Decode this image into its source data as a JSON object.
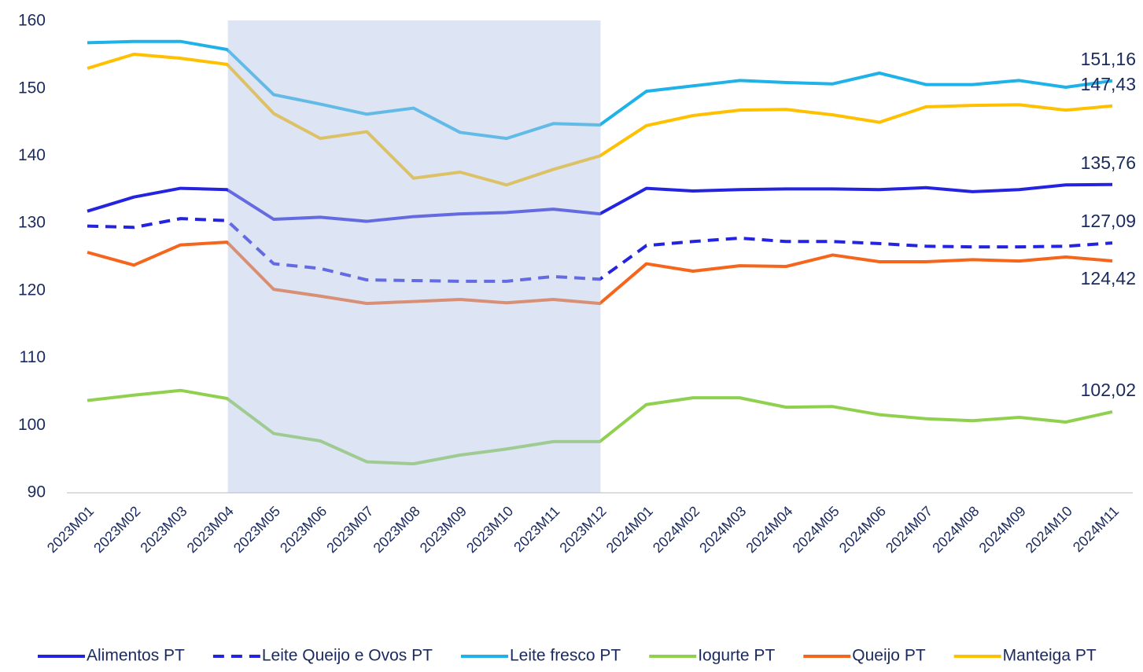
{
  "chart_data": {
    "type": "line",
    "categories": [
      "2023M01",
      "2023M02",
      "2023M03",
      "2023M04",
      "2023M05",
      "2023M06",
      "2023M07",
      "2023M08",
      "2023M09",
      "2023M10",
      "2023M11",
      "2023M12",
      "2024M01",
      "2024M02",
      "2024M03",
      "2024M04",
      "2024M05",
      "2024M06",
      "2024M07",
      "2024M08",
      "2024M09",
      "2024M10",
      "2024M11"
    ],
    "ylim": [
      90,
      160
    ],
    "yticks": [
      90,
      100,
      110,
      120,
      130,
      140,
      150,
      160
    ],
    "shaded_range": [
      3,
      11
    ],
    "series": [
      {
        "name": "Alimentos PT",
        "color": "#2424e0",
        "dash": false,
        "values": [
          131.8,
          133.9,
          135.2,
          135.0,
          130.6,
          130.9,
          130.3,
          131.0,
          131.4,
          131.6,
          132.1,
          131.4,
          135.2,
          134.8,
          135.0,
          135.1,
          135.1,
          135.0,
          135.3,
          134.7,
          135.0,
          135.7,
          135.76
        ],
        "value_labels": [
          null,
          null,
          null,
          null,
          null,
          null,
          null,
          null,
          null,
          null,
          null,
          null,
          null,
          null,
          null,
          null,
          null,
          null,
          null,
          null,
          null,
          null,
          "135,76"
        ]
      },
      {
        "name": "Leite Queijo e Ovos PT",
        "color": "#2424e0",
        "dash": true,
        "values": [
          129.6,
          129.4,
          130.7,
          130.4,
          124.0,
          123.3,
          121.6,
          121.5,
          121.4,
          121.4,
          122.1,
          121.7,
          126.7,
          127.3,
          127.8,
          127.3,
          127.3,
          127.0,
          126.6,
          126.5,
          126.5,
          126.6,
          127.09
        ],
        "value_labels": [
          null,
          null,
          null,
          null,
          null,
          null,
          null,
          null,
          null,
          null,
          null,
          null,
          null,
          null,
          null,
          null,
          null,
          null,
          null,
          null,
          null,
          null,
          "127,09"
        ]
      },
      {
        "name": "Leite fresco PT",
        "color": "#1fb2e8",
        "dash": false,
        "values": [
          156.8,
          157.0,
          157.0,
          155.8,
          149.1,
          147.7,
          146.2,
          147.1,
          143.5,
          142.6,
          144.8,
          144.6,
          149.6,
          150.4,
          151.2,
          150.9,
          150.7,
          152.3,
          150.6,
          150.6,
          151.2,
          150.2,
          151.16
        ],
        "value_labels": [
          null,
          null,
          null,
          null,
          null,
          null,
          null,
          null,
          null,
          null,
          null,
          null,
          null,
          null,
          null,
          null,
          null,
          null,
          null,
          null,
          null,
          null,
          "151,16"
        ]
      },
      {
        "name": "Iogurte PT",
        "color": "#8fd14f",
        "dash": false,
        "values": [
          103.7,
          104.5,
          105.2,
          104.0,
          98.8,
          97.7,
          94.6,
          94.3,
          95.6,
          96.5,
          97.6,
          97.6,
          103.1,
          104.1,
          104.1,
          102.7,
          102.8,
          101.6,
          101.0,
          100.7,
          101.2,
          100.5,
          102.02
        ],
        "value_labels": [
          null,
          null,
          null,
          null,
          null,
          null,
          null,
          null,
          null,
          null,
          null,
          null,
          null,
          null,
          null,
          null,
          null,
          null,
          null,
          null,
          null,
          null,
          "102,02"
        ]
      },
      {
        "name": "Queijo PT",
        "color": "#f5651c",
        "dash": false,
        "values": [
          125.7,
          123.8,
          126.8,
          127.2,
          120.2,
          119.2,
          118.1,
          118.4,
          118.7,
          118.2,
          118.7,
          118.1,
          124.0,
          122.9,
          123.7,
          123.6,
          125.3,
          124.3,
          124.3,
          124.6,
          124.4,
          125.0,
          124.42
        ],
        "value_labels": [
          null,
          null,
          null,
          null,
          null,
          null,
          null,
          null,
          null,
          null,
          null,
          null,
          null,
          null,
          null,
          null,
          null,
          null,
          null,
          null,
          null,
          null,
          "124,42"
        ]
      },
      {
        "name": "Manteiga PT",
        "color": "#ffc000",
        "dash": false,
        "values": [
          153.0,
          155.1,
          154.5,
          153.6,
          146.3,
          142.6,
          143.6,
          136.7,
          137.6,
          135.7,
          138.0,
          140.0,
          144.5,
          146.0,
          146.8,
          146.9,
          146.1,
          145.0,
          147.3,
          147.5,
          147.6,
          146.8,
          147.43
        ],
        "value_labels": [
          null,
          null,
          null,
          null,
          null,
          null,
          null,
          null,
          null,
          null,
          null,
          null,
          null,
          null,
          null,
          null,
          null,
          null,
          null,
          null,
          null,
          null,
          "147,43"
        ]
      }
    ]
  }
}
